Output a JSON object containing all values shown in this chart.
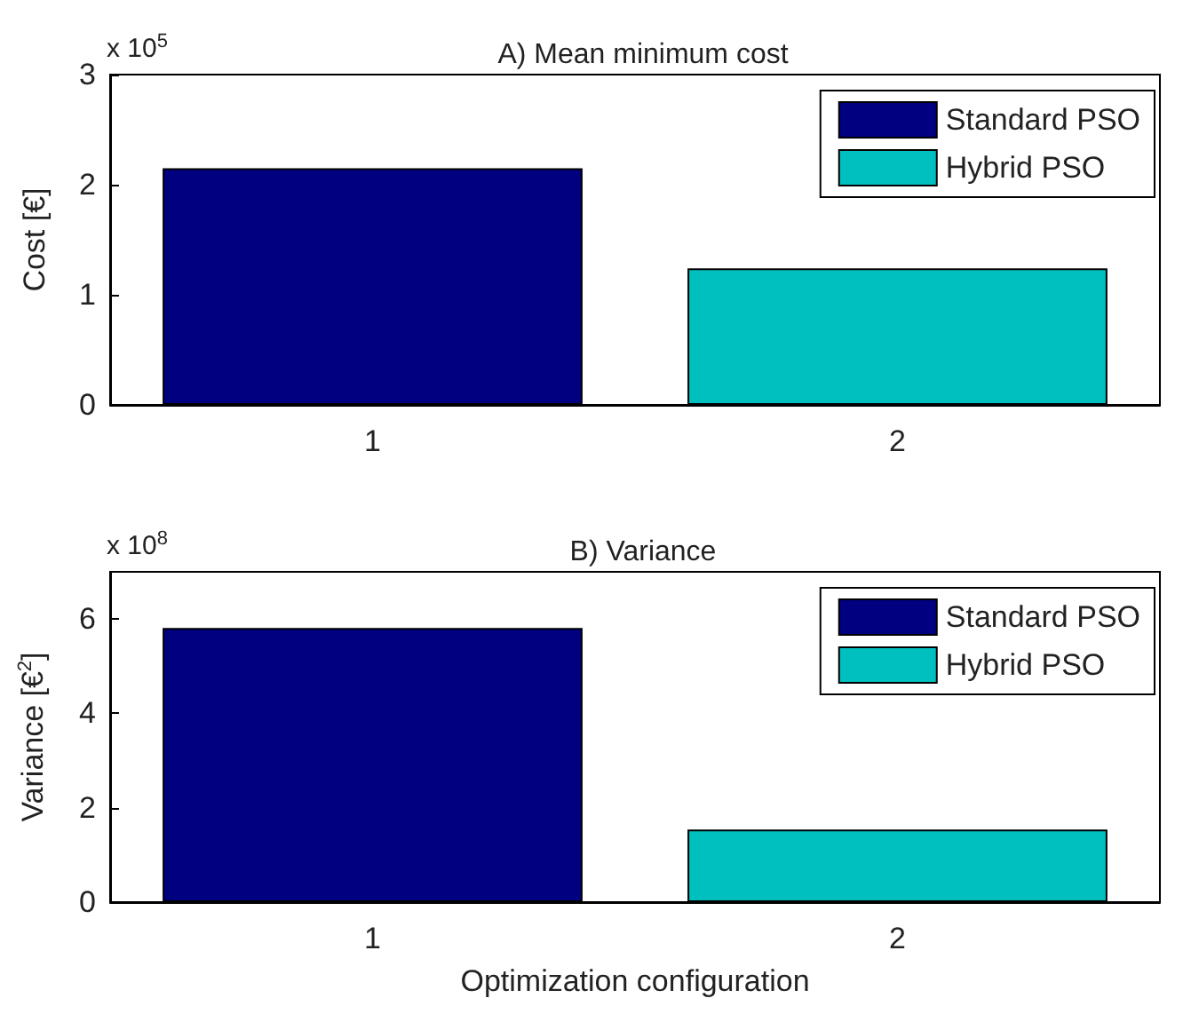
{
  "chart_data": [
    {
      "type": "bar",
      "title": "A) Mean minimum cost",
      "ylabel": "Cost [€]",
      "annotations": [
        "x 10$^{5}$"
      ],
      "categories": [
        "1",
        "2"
      ],
      "series": [
        {
          "name": "Standard PSO",
          "color": "#000080",
          "values": [
            2.15,
            null
          ]
        },
        {
          "name": "Hybrid PSO",
          "color": "#00bfbf",
          "values": [
            null,
            1.24
          ]
        }
      ],
      "ylim": [
        0,
        3
      ],
      "yticks": [
        0,
        1,
        2,
        3
      ],
      "grid": false,
      "legend": "top right"
    },
    {
      "type": "bar",
      "title": "B) Variance",
      "xlabel": "Optimization configuration",
      "ylabel": "Variance [€$^{2}$]",
      "annotations": [
        "x 10$^{8}$"
      ],
      "categories": [
        "1",
        "2"
      ],
      "series": [
        {
          "name": "Standard PSO",
          "color": "#000080",
          "values": [
            5.81,
            null
          ]
        },
        {
          "name": "Hybrid PSO",
          "color": "#00bfbf",
          "values": [
            null,
            1.54
          ]
        }
      ],
      "ylim": [
        0,
        7
      ],
      "yticks": [
        0,
        2,
        4,
        6
      ],
      "grid": false,
      "legend": "top right"
    }
  ]
}
